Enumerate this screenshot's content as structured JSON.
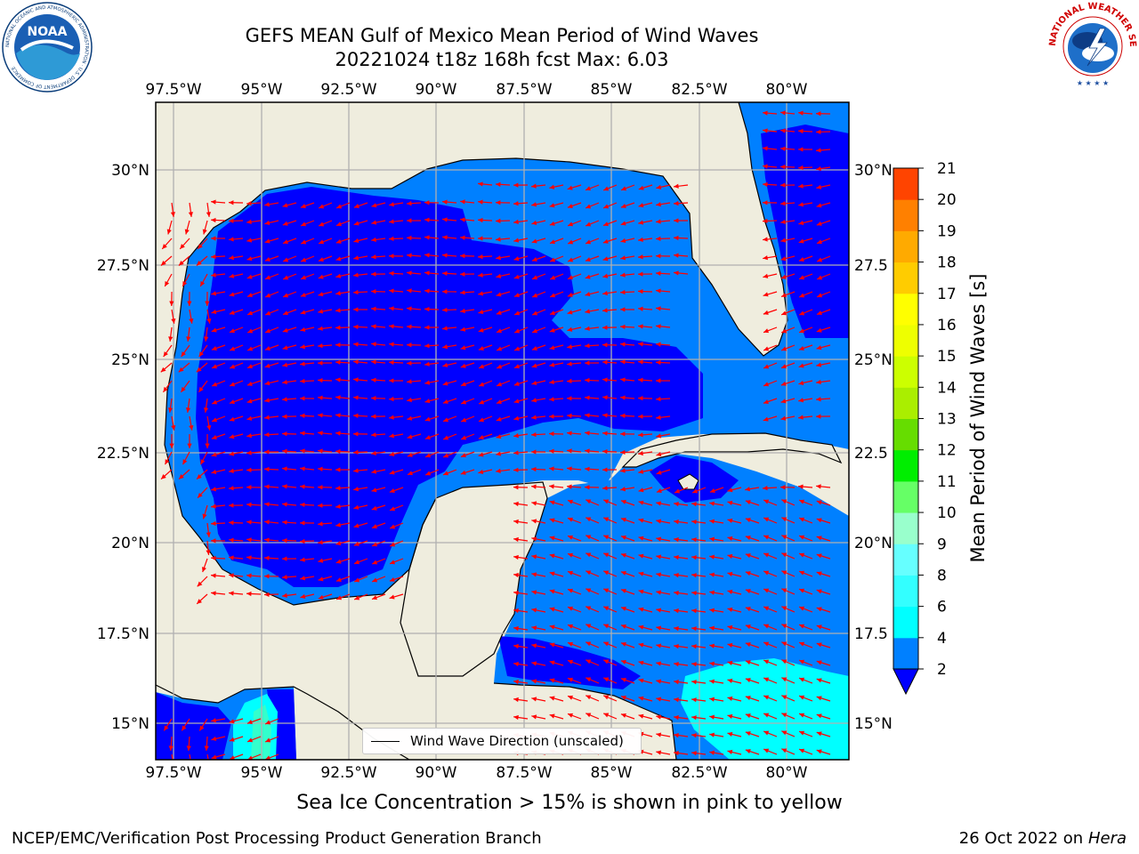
{
  "title": {
    "line1": "GEFS MEAN Gulf of Mexico Mean Period of Wind Waves",
    "line2": "20221024 t18z 168h fcst   Max: 6.03"
  },
  "map": {
    "lon_labels": [
      "97.5°W",
      "95°W",
      "92.5°W",
      "90°W",
      "87.5°W",
      "85°W",
      "82.5°W",
      "80°W"
    ],
    "lat_labels_left": [
      "30°N",
      "27.5°N",
      "25°N",
      "22.5°N",
      "20°N",
      "17.5°N",
      "15°N"
    ],
    "lat_labels_right": [
      "30°N",
      "27.5",
      "25°N",
      "22.5",
      "20°N",
      "17.5",
      "15°N"
    ],
    "legend_label": "Wind Wave Direction (unscaled)",
    "colors": {
      "land": "#efedde",
      "band_2_4": "#0080ff",
      "band_below_2": "#0000ff",
      "band_4_6": "#00ffff",
      "arrow": "#ff0000",
      "grid": "#b0b0b0"
    }
  },
  "colorbar": {
    "label": "Mean Period of Wind Waves [s]",
    "ticks": [
      "2",
      "4",
      "6",
      "8",
      "9",
      "10",
      "11",
      "12",
      "13",
      "14",
      "15",
      "16",
      "17",
      "18",
      "19",
      "20",
      "21"
    ],
    "colors": [
      "#0080ff",
      "#00ffff",
      "#33ffff",
      "#66ffff",
      "#99ffcc",
      "#66ff66",
      "#00ee00",
      "#66dd00",
      "#aaee00",
      "#ccff00",
      "#eeff00",
      "#ffff00",
      "#ffcc00",
      "#ffaa00",
      "#ff8000",
      "#ff4400",
      "#ff0000"
    ]
  },
  "subtitle": "Sea Ice Concentration > 15% is shown in pink to yellow",
  "footer": {
    "left": "NCEP/EMC/Verification Post Processing Product Generation Branch",
    "right_date": "26 Oct 2022 on",
    "right_host": "Hera"
  },
  "logos": {
    "noaa": "NOAA",
    "noaa_ring": "NATIONAL OCEANIC AND ATMOSPHERIC ADMINISTRATION · U.S. DEPARTMENT OF COMMERCE",
    "nws_ring": "NATIONAL WEATHER SERVICE"
  }
}
